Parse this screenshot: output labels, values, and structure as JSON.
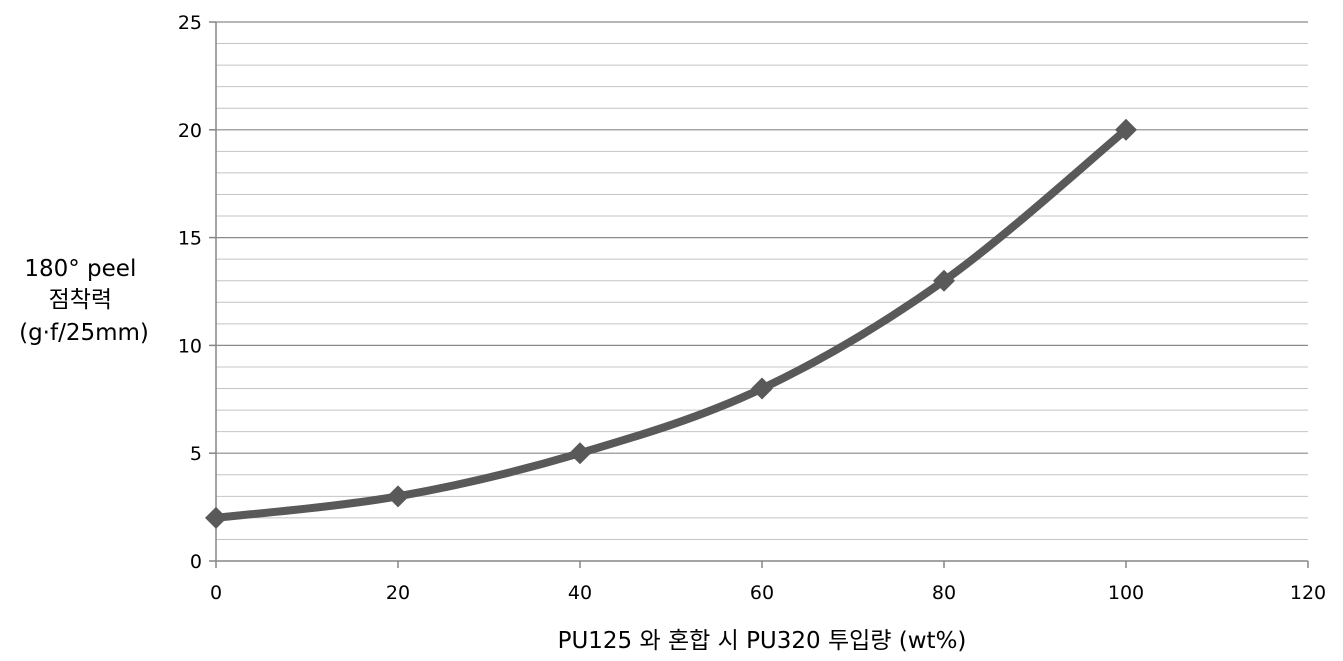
{
  "chart_data": {
    "type": "line",
    "title": "",
    "xlabel": "PU125 와 혼합 시 PU320 투입량 (wt%)",
    "ylabel_lines": [
      "180° peel",
      "점착력",
      "(g·f/25mm)"
    ],
    "xlim": [
      0,
      120
    ],
    "ylim": [
      0,
      25
    ],
    "x_ticks": [
      0,
      20,
      40,
      60,
      80,
      100,
      120
    ],
    "y_ticks": [
      0,
      5,
      10,
      15,
      20,
      25
    ],
    "grid": "horizontal major and minor",
    "legend": "none",
    "series": [
      {
        "x": [
          0,
          20,
          40,
          60,
          80,
          100
        ],
        "y": [
          2,
          3,
          5,
          8,
          13,
          20
        ],
        "color": "#595959",
        "marker": "diamond",
        "smooth": true
      }
    ]
  }
}
